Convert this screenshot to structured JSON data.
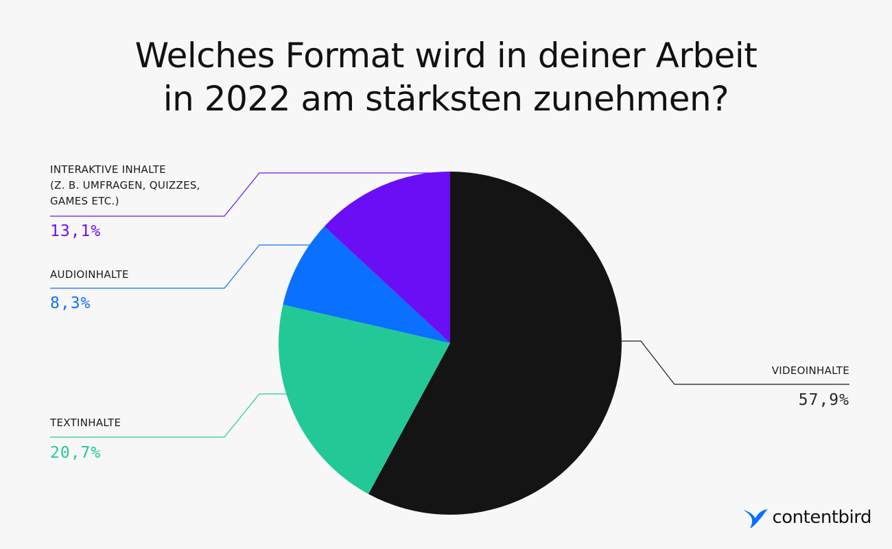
{
  "title": {
    "line1": "Welches Format wird in deiner Arbeit",
    "line2": "in 2022 am stärksten zunehmen?"
  },
  "chart_data": {
    "type": "pie",
    "title": "Welches Format wird in deiner Arbeit in 2022 am stärksten zunehmen?",
    "slices": [
      {
        "label_lines": [
          "VIDEOINHALTE"
        ],
        "value": 57.9,
        "value_label": "57,9%",
        "color": "#141414"
      },
      {
        "label_lines": [
          "TEXTINHALTE"
        ],
        "value": 20.7,
        "value_label": "20,7%",
        "color": "#22c997"
      },
      {
        "label_lines": [
          "AUDIOINHALTE"
        ],
        "value": 8.3,
        "value_label": "8,3%",
        "color": "#0a70ff"
      },
      {
        "label_lines": [
          "INTERAKTIVE INHALTE",
          "(Z. B. UMFRAGEN, QUIZZES,",
          "GAMES ETC.)"
        ],
        "value": 13.1,
        "value_label": "13,1%",
        "color": "#6a0ff5"
      }
    ]
  },
  "brand": {
    "name": "contentbird",
    "icon": "bird-logo-icon",
    "color": "#0a70ff"
  }
}
